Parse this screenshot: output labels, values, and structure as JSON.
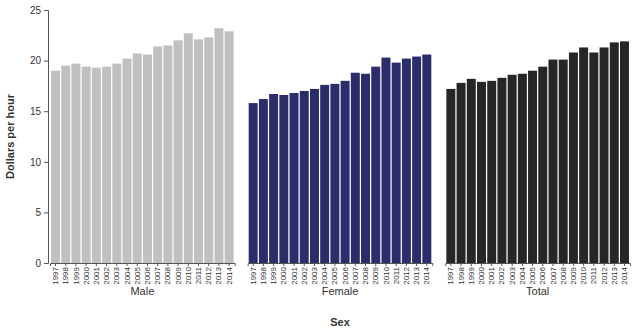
{
  "chart_data": {
    "type": "bar",
    "x_label": "Sex",
    "y_label": "Dollars per hour",
    "categories": [
      "1997",
      "1998",
      "1999",
      "2000",
      "2001",
      "2002",
      "2003",
      "2004",
      "2005",
      "2006",
      "2007",
      "2008",
      "2009",
      "2010",
      "2011",
      "2012",
      "2013",
      "2014"
    ],
    "series": [
      {
        "name": "Male",
        "color": "#c0c0c0",
        "values": [
          19.0,
          19.5,
          19.7,
          19.4,
          19.3,
          19.4,
          19.7,
          20.2,
          20.7,
          20.6,
          21.4,
          21.5,
          22.0,
          22.7,
          22.1,
          22.3,
          23.2,
          22.9
        ]
      },
      {
        "name": "Female",
        "color": "#2b2d6b",
        "values": [
          15.8,
          16.2,
          16.7,
          16.6,
          16.8,
          17.0,
          17.2,
          17.6,
          17.7,
          18.0,
          18.8,
          18.7,
          19.4,
          20.3,
          19.8,
          20.2,
          20.4,
          20.6
        ]
      },
      {
        "name": "Total",
        "color": "#262626",
        "values": [
          17.2,
          17.8,
          18.2,
          17.9,
          18.0,
          18.3,
          18.6,
          18.7,
          19.0,
          19.4,
          20.1,
          20.1,
          20.8,
          21.3,
          20.8,
          21.3,
          21.8,
          21.9
        ]
      }
    ],
    "ylim": [
      0,
      25
    ],
    "yticks": [
      0,
      5,
      10,
      15,
      20,
      25
    ],
    "grid": false
  }
}
